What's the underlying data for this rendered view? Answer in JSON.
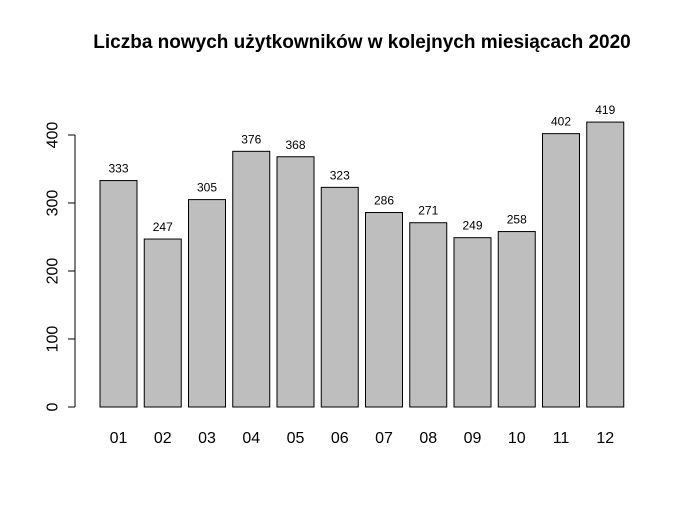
{
  "chart_data": {
    "type": "bar",
    "title": "Liczba nowych użytkowników w kolejnych miesiącach 2020",
    "xlabel": "",
    "ylabel": "",
    "categories": [
      "01",
      "02",
      "03",
      "04",
      "05",
      "06",
      "07",
      "08",
      "09",
      "10",
      "11",
      "12"
    ],
    "values": [
      333,
      247,
      305,
      376,
      368,
      323,
      286,
      271,
      249,
      258,
      402,
      419
    ],
    "data_labels": [
      "333",
      "247",
      "305",
      "376",
      "368",
      "323",
      "286",
      "271",
      "249",
      "258",
      "402",
      "419"
    ],
    "y_ticks": [
      0,
      100,
      200,
      300,
      400
    ],
    "y_tick_labels": [
      "0",
      "100",
      "200",
      "300",
      "400"
    ],
    "ylim": [
      0,
      419
    ],
    "grid": false,
    "legend": "none",
    "bar_color": "#bebebe",
    "edge_color": "#000000"
  }
}
